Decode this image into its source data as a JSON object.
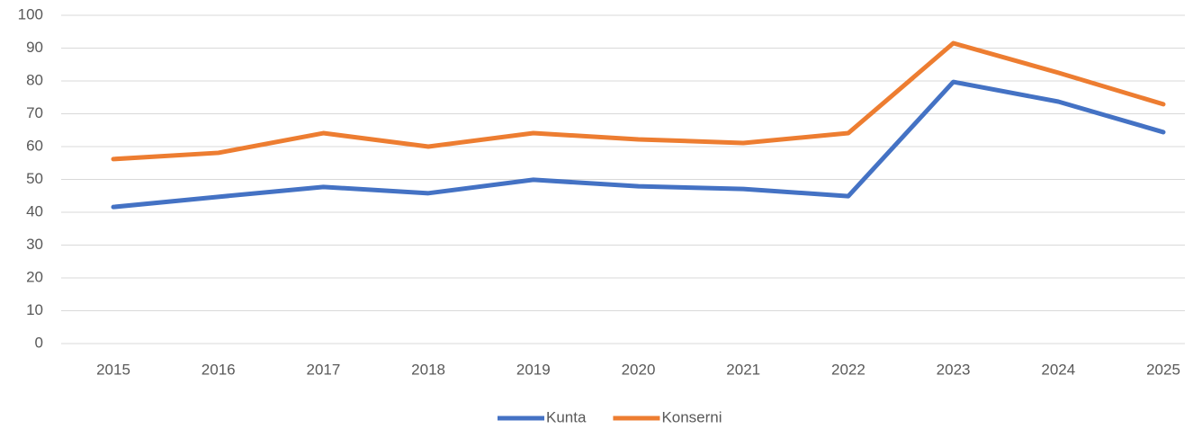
{
  "chart_data": {
    "type": "line",
    "categories": [
      "2015",
      "2016",
      "2017",
      "2018",
      "2019",
      "2020",
      "2021",
      "2022",
      "2023",
      "2024",
      "2025"
    ],
    "series": [
      {
        "name": "Kunta",
        "color": "#4472c4",
        "values": [
          41.6,
          44.7,
          47.7,
          45.8,
          49.9,
          47.9,
          47.1,
          44.9,
          79.7,
          73.7,
          64.4
        ]
      },
      {
        "name": "Konserni",
        "color": "#ed7d31",
        "values": [
          56.2,
          58.1,
          64.1,
          60,
          64.1,
          62.2,
          61.1,
          64.1,
          91.5,
          82.5,
          72.9
        ]
      }
    ],
    "ylim": [
      0,
      100
    ],
    "yticks": [
      0,
      10,
      20,
      30,
      40,
      50,
      60,
      70,
      80,
      90,
      100
    ],
    "grid": true,
    "legend": "bottom"
  }
}
